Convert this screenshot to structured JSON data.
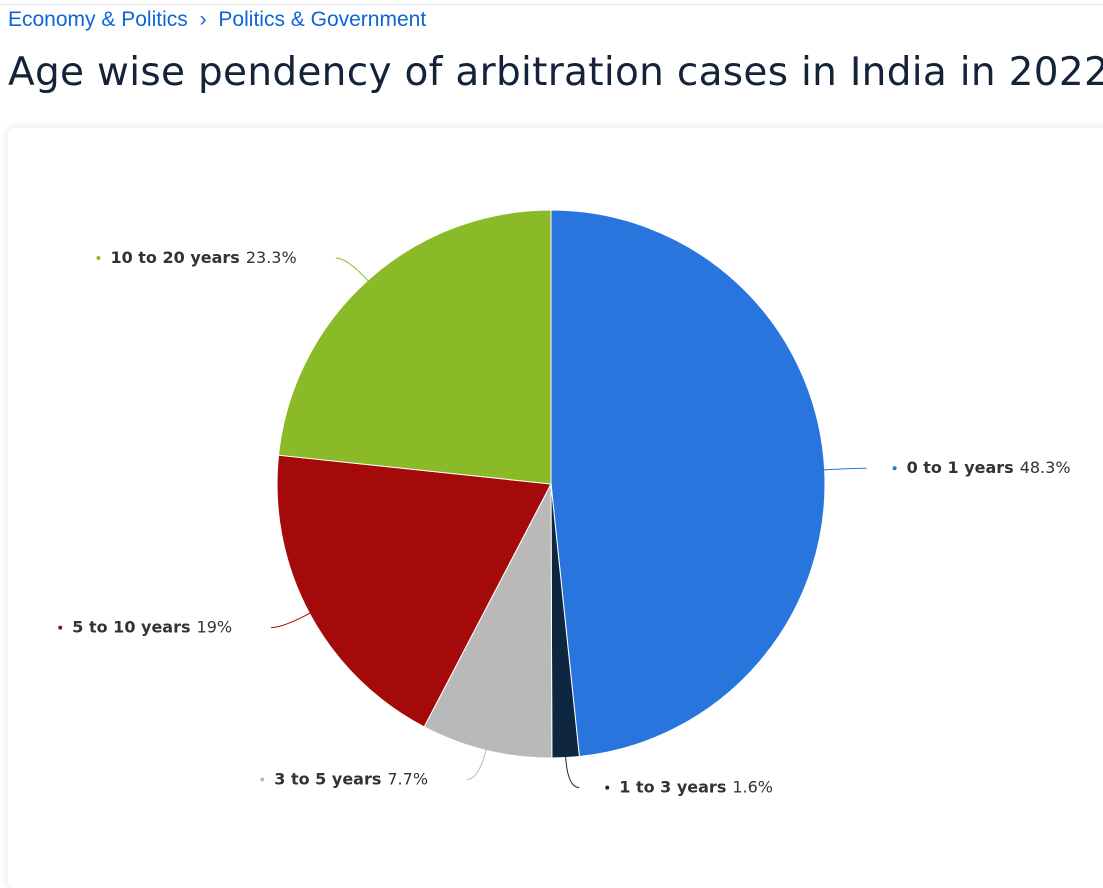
{
  "breadcrumb": {
    "items": [
      "Economy & Politics",
      "Politics & Government"
    ],
    "separator": "›"
  },
  "chart_data": {
    "type": "pie",
    "title": "Age wise pendency of arbitration cases in India in 2022",
    "categories": [
      "0 to 1 years",
      "1 to 3 years",
      "3 to 5 years",
      "5 to 10 years",
      "10 to 20 years"
    ],
    "values": [
      48.3,
      1.6,
      7.7,
      19,
      23.3
    ],
    "value_labels": [
      "48.3%",
      "1.6%",
      "7.7%",
      "19%",
      "23.3%"
    ],
    "colors": [
      "#2876dd",
      "#0f2640",
      "#b9b9b9",
      "#a50a0b",
      "#8aba27"
    ]
  }
}
